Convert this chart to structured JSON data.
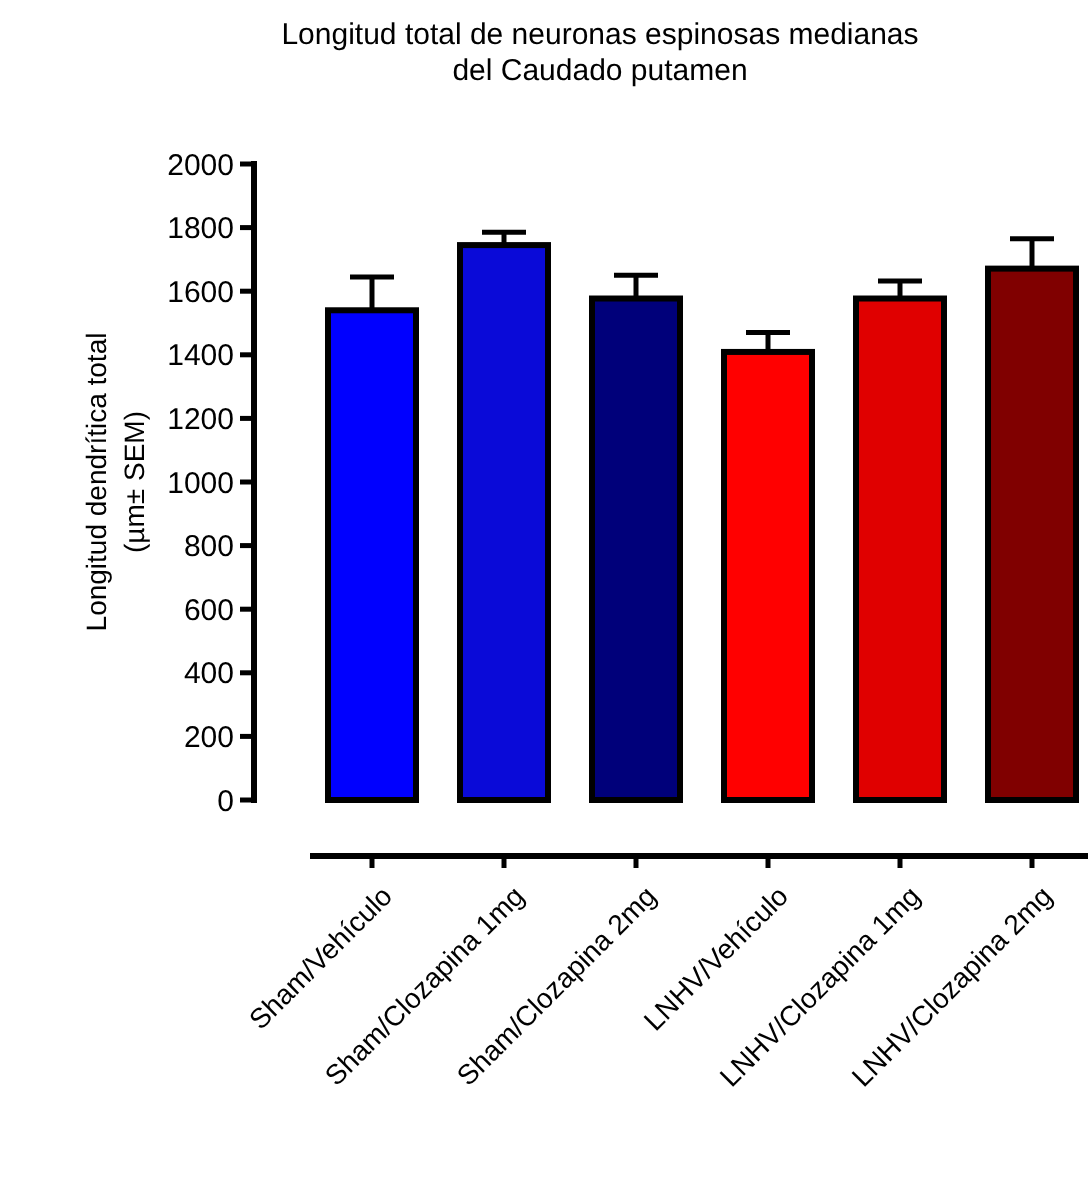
{
  "chart_data": {
    "type": "bar",
    "title": "Longitud total de neuronas espinosas medianas\ndel Caudado putamen",
    "ylabel": "Longitud dendrítica total\n(µm± SEM)",
    "categories": [
      "Sham/Vehículo",
      "Sham/Clozapina 1mg",
      "Sham/Clozapina 2mg",
      "LNHV/Vehículo",
      "LNHV/Clozapina 1mg",
      "LNHV/Clozapina 2mg"
    ],
    "values": [
      1540,
      1745,
      1577,
      1409,
      1577,
      1671
    ],
    "errors": [
      [
        1540,
        1645
      ],
      [
        1745,
        1785
      ],
      [
        1577,
        1650
      ],
      [
        1409,
        1470
      ],
      [
        1577,
        1632
      ],
      [
        1671,
        1765
      ]
    ],
    "colors": [
      "#0000ff",
      "#0a0ad8",
      "#00007a",
      "#ff0000",
      "#e00000",
      "#800000"
    ],
    "ylim": [
      0,
      2000
    ],
    "yticks": [
      0,
      200,
      400,
      600,
      800,
      1000,
      1200,
      1400,
      1600,
      1800,
      2000
    ],
    "grid": false
  }
}
